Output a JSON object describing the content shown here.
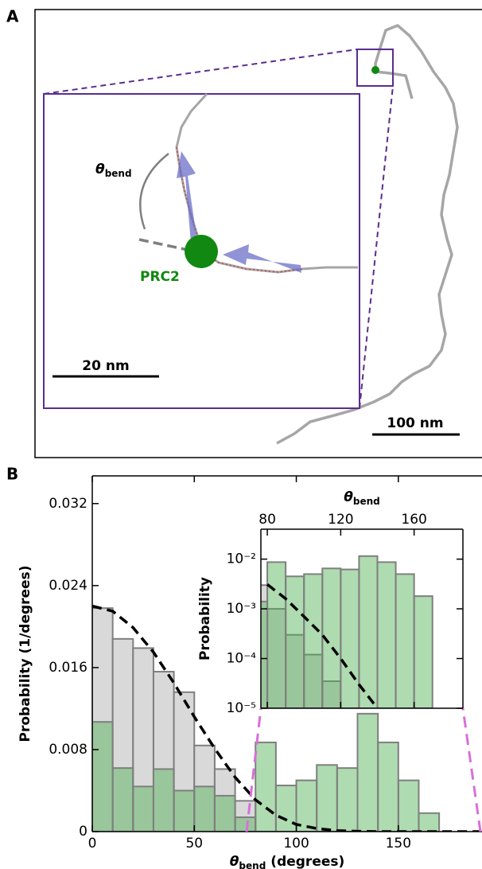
{
  "panel_labels": [
    "A",
    "B"
  ],
  "panel_a": {
    "angle_label": [
      "θ",
      "bend"
    ],
    "protein_label": "PRC2",
    "inset_scale": "20 nm",
    "main_scale": "100 nm"
  },
  "chart_data": [
    {
      "type": "histogram",
      "xlabel": [
        "θ",
        "bend",
        "(degrees)"
      ],
      "ylabel": "Probability (1/degrees)",
      "xlim": [
        0,
        191
      ],
      "ylim": [
        0,
        0.0347
      ],
      "xticks": [
        0,
        50,
        100,
        150
      ],
      "yticks": [
        0,
        0.008,
        0.016,
        0.024,
        0.032
      ],
      "series": [
        {
          "color": "#d9d9d9",
          "bins": [
            0,
            10,
            20,
            30,
            40,
            50,
            60,
            70,
            80
          ],
          "values": [
            0.0218,
            0.0188,
            0.0179,
            0.0156,
            0.0136,
            0.0084,
            0.0061,
            0.003
          ]
        },
        {
          "color": "#4caf50",
          "bins": [
            0,
            10,
            20,
            30,
            40,
            50,
            60,
            70,
            80,
            90,
            100,
            110,
            120,
            130,
            140,
            150,
            160,
            170
          ],
          "values": [
            0.0107,
            0.0062,
            0.0044,
            0.0061,
            0.004,
            0.0044,
            0.0035,
            0.0014,
            0.0087,
            0.0045,
            0.005,
            0.0065,
            0.0062,
            0.0115,
            0.0087,
            0.005,
            0.0018
          ]
        }
      ],
      "curve": {
        "color": "#000000",
        "x": [
          0,
          10,
          20,
          30,
          40,
          50,
          60,
          70,
          80,
          90,
          100,
          110,
          120,
          130,
          140,
          150,
          160,
          170,
          180,
          190
        ],
        "y": [
          0.022,
          0.0215,
          0.0199,
          0.0175,
          0.0145,
          0.0112,
          0.0081,
          0.0053,
          0.0031,
          0.0016,
          0.0007,
          0.0003,
          0.0001,
          3e-05,
          0,
          0,
          0,
          0,
          0,
          0
        ]
      }
    },
    {
      "type": "histogram",
      "log_y": true,
      "xlabel": [
        "θ",
        "bend"
      ],
      "ylabel": "Probability",
      "xlim": [
        76.5,
        186.6
      ],
      "ylim": [
        1e-05,
        0.04
      ],
      "xticks": [
        80,
        120,
        160
      ],
      "yticks": [
        {
          "value": 1e-05,
          "label": "10⁻⁵"
        },
        {
          "value": 0.0001,
          "label": "10⁻⁴"
        },
        {
          "value": 0.001,
          "label": "10⁻³"
        },
        {
          "value": 0.01,
          "label": "10⁻²"
        }
      ],
      "series": [
        {
          "color": "#d9d9d9",
          "bins": [
            70,
            80,
            90,
            100,
            110,
            120
          ],
          "values": [
            0.003,
            0.001,
            0.0003,
            0.00012,
            3.5e-05
          ]
        },
        {
          "color": "#4caf50",
          "bins": [
            70,
            80,
            90,
            100,
            110,
            120,
            130,
            140,
            150,
            160,
            170
          ],
          "values": [
            0.0014,
            0.0087,
            0.0045,
            0.005,
            0.0065,
            0.0062,
            0.0115,
            0.0087,
            0.005,
            0.0018
          ]
        }
      ],
      "curve": {
        "color": "#000000",
        "x": [
          80,
          90,
          100,
          110,
          120,
          130,
          140
        ],
        "y": [
          0.0031,
          0.0016,
          0.0007,
          0.0003,
          0.0001,
          3e-05,
          1e-05
        ]
      }
    }
  ]
}
